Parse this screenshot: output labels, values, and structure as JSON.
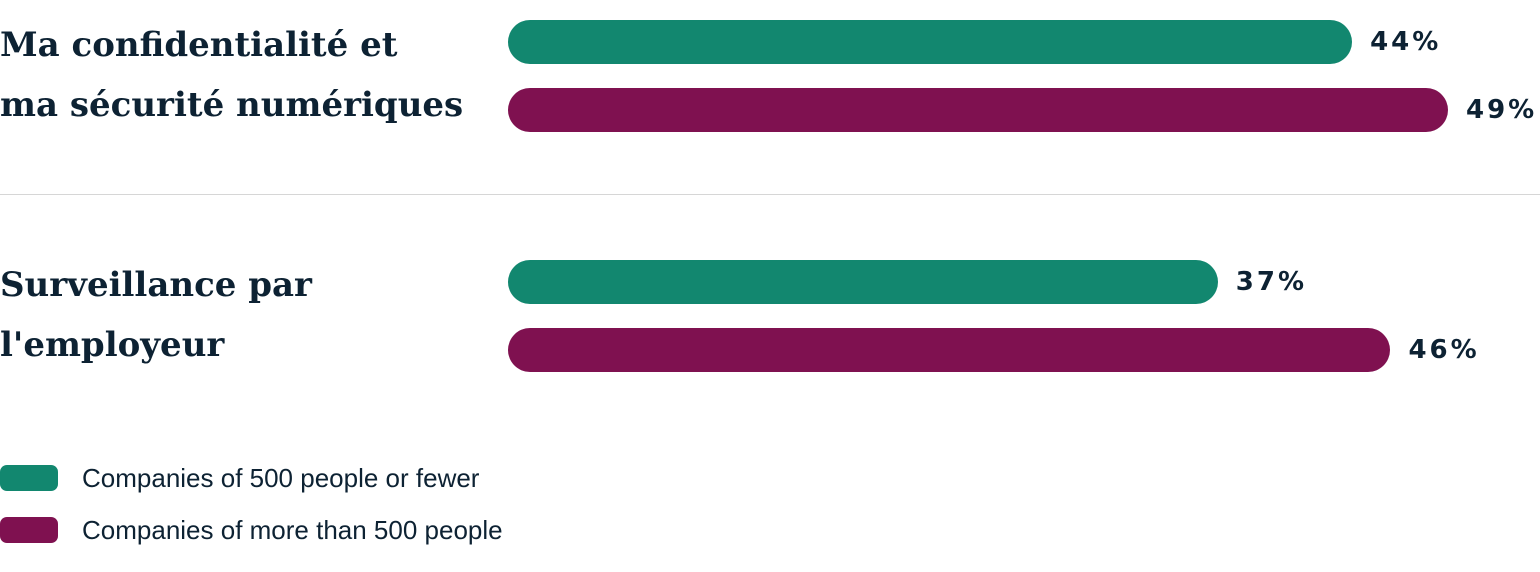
{
  "chart_data": {
    "type": "bar",
    "orientation": "horizontal",
    "categories": [
      "Ma confidentialité et ma sécurité numériques",
      "Surveillance par l'employeur"
    ],
    "category_lines": [
      [
        "Ma confidentialité et",
        "ma sécurité numériques"
      ],
      [
        "Surveillance par",
        "l'employeur"
      ]
    ],
    "series": [
      {
        "name": "Companies of 500 people or fewer",
        "values": [
          44,
          37
        ],
        "labels": [
          "44%",
          "37%"
        ],
        "color": "#12876f"
      },
      {
        "name": "Companies of more than 500 people",
        "values": [
          49,
          46
        ],
        "labels": [
          "49%",
          "46%"
        ],
        "color": "#7f1150"
      }
    ],
    "unit": "%",
    "legend_position": "bottom-left",
    "grid": false
  }
}
